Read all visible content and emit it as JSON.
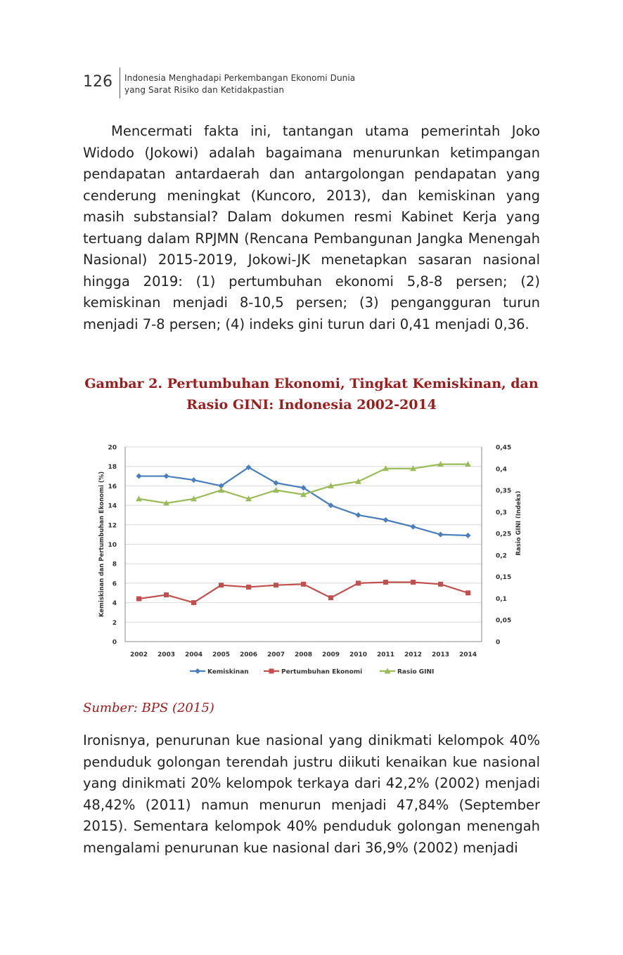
{
  "header": {
    "page_number": "126",
    "running_title_line1": "Indonesia Menghadapi Perkembangan Ekonomi Dunia",
    "running_title_line2": "yang Sarat Risiko dan Ketidakpastian"
  },
  "paragraph1": "Mencermati fakta ini, tantangan utama pemerintah Joko Widodo (Jokowi) adalah bagaimana menurunkan ketimpangan pendapatan antardaerah dan antargolongan pendapatan yang cenderung meningkat (Kuncoro, 2013), dan kemiskinan yang masih substansial? Dalam dokumen resmi Kabinet Kerja yang tertuang dalam RPJMN (Rencana Pembangunan Jangka Menengah Nasional) 2015-2019, Jokowi-JK menetapkan sasaran nasional hingga 2019: (1) pertumbuhan ekonomi 5,8-8 persen; (2) kemiskinan menjadi 8-10,5 persen; (3) pengangguran turun menjadi 7-8 persen; (4) indeks gini turun dari 0,41 menjadi 0,36.",
  "figure": {
    "title_line1": "Gambar 2. Pertumbuhan Ekonomi, Tingkat Kemiskinan, dan",
    "title_line2": "Rasio GINI:  Indonesia 2002-2014",
    "source": "Sumber: BPS (2015)"
  },
  "chart_data": {
    "type": "line",
    "x": [
      "2002",
      "2003",
      "2004",
      "2005",
      "2006",
      "2007",
      "2008",
      "2009",
      "2010",
      "2011",
      "2012",
      "2013",
      "2014"
    ],
    "ylabel": "Kemiskinan dan Pertumbuhan Ekonomi (%)",
    "y2label": "Rasio GINI (Indeks)",
    "ylim": [
      0,
      20
    ],
    "y_ticks": [
      "0",
      "2",
      "4",
      "6",
      "8",
      "10",
      "12",
      "14",
      "16",
      "18",
      "20"
    ],
    "y2lim": [
      0,
      0.45
    ],
    "y2_ticks": [
      "0",
      "0,05",
      "0,1",
      "0,15",
      "0,2",
      "0,25",
      "0,3",
      "0,35",
      "0,4",
      "0,45"
    ],
    "grid": true,
    "legend_position": "bottom",
    "series": [
      {
        "name": "Kemiskinan",
        "axis": "left",
        "color": "#4a7ebb",
        "marker": "diamond",
        "values": [
          17.0,
          17.0,
          16.6,
          16.0,
          17.9,
          16.3,
          15.8,
          14.0,
          13.0,
          12.5,
          11.8,
          11.0,
          10.9
        ]
      },
      {
        "name": "Pertumbuhan Ekonomi",
        "axis": "right_no",
        "color": "#c0504d",
        "marker": "square",
        "values": [
          4.4,
          4.8,
          4.0,
          5.8,
          5.6,
          5.8,
          5.9,
          4.5,
          6.0,
          6.1,
          6.1,
          5.9,
          5.0
        ]
      },
      {
        "name": "Rasio GINI",
        "axis": "right",
        "color": "#9bbb59",
        "marker": "triangle",
        "values": [
          0.33,
          0.32,
          0.33,
          0.35,
          0.33,
          0.35,
          0.34,
          0.36,
          0.37,
          0.4,
          0.4,
          0.41,
          0.41
        ]
      }
    ]
  },
  "paragraph2": "Ironisnya, penurunan kue nasional yang dinikmati kelompok 40% penduduk golongan terendah justru diikuti kenaikan kue nasional yang dinikmati 20% kelompok terkaya dari 42,2% (2002) menjadi 48,42% (2011) namun menurun menjadi 47,84% (September 2015). Sementara kelompok 40% penduduk golongan menengah mengalami penurunan kue nasional dari 36,9% (2002) menjadi"
}
